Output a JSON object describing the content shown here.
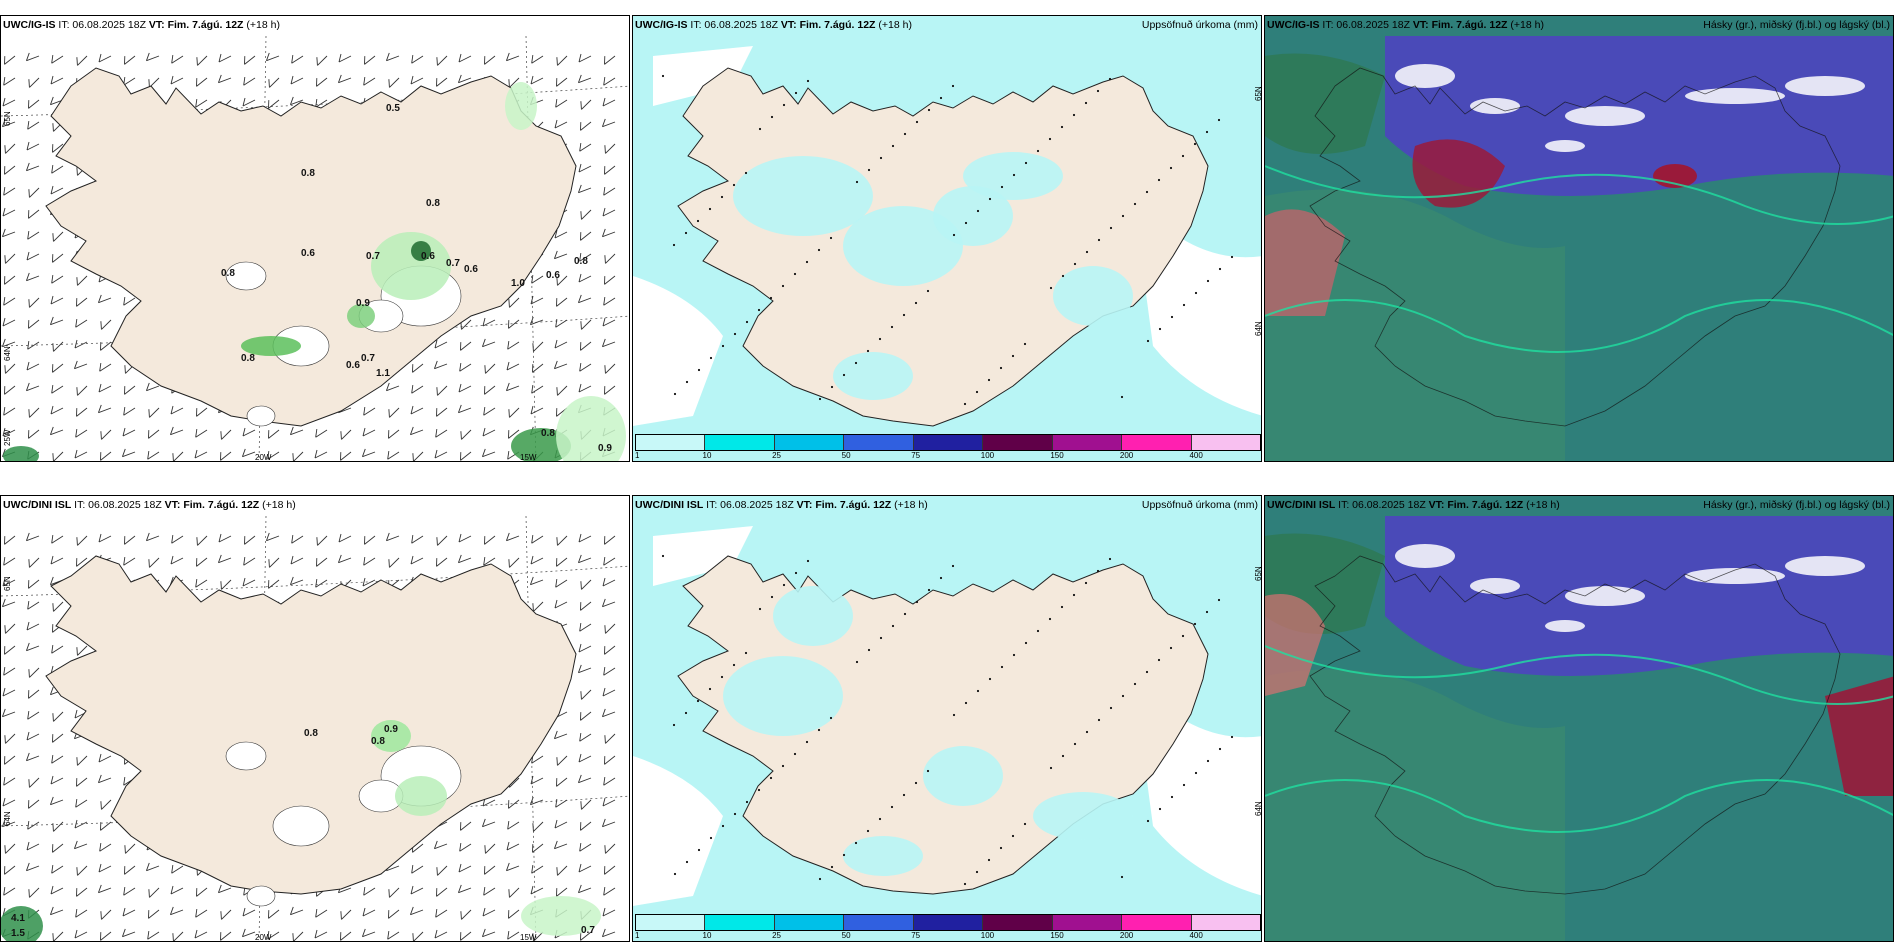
{
  "colors": {
    "land": "#f4e9dc",
    "precip_light": "#b8f5f5",
    "cloud_blue": "#4a4ab8",
    "cloud_teal": "#2f7f7a",
    "cloud_red": "#9a1a3a"
  },
  "panels": [
    {
      "id": "top-left",
      "model": "UWC/IG-IS",
      "it_label": "IT: 06.08.2025 18Z",
      "vt_label": "VT: Fim. 7.ágú. 12Z",
      "lead": "(+18 h)",
      "right_title": "",
      "type": "wind",
      "lat_labels": [
        "65N",
        "64N",
        "25W"
      ],
      "lon_labels": [
        "20W",
        "15W"
      ],
      "values": [
        "0.5",
        "0.8",
        "0.8",
        "0.8",
        "0.6",
        "0.7",
        "0.6",
        "0.9",
        "0.7",
        "0.6",
        "0.6",
        "1.0",
        "0.8",
        "0.8",
        "0.7",
        "0.6",
        "1.1",
        "0.8",
        "0.9"
      ]
    },
    {
      "id": "top-middle",
      "model": "UWC/IG-IS",
      "it_label": "IT: 06.08.2025 18Z",
      "vt_label": "VT: Fim. 7.ágú. 12Z",
      "lead": "(+18 h)",
      "right_title": "Uppsöfnuð úrkoma (mm)",
      "type": "precip",
      "lat_labels": [
        "65N",
        "64N"
      ],
      "colorbar": [
        "1",
        "10",
        "25",
        "50",
        "75",
        "100",
        "150",
        "200",
        "400"
      ]
    },
    {
      "id": "top-right",
      "model": "UWC/IG-IS",
      "it_label": "IT: 06.08.2025 18Z",
      "vt_label": "VT: Fim. 7.ágú. 12Z",
      "lead": "(+18 h)",
      "right_title": "Hásky (gr.), miðský (fj.bl.) og lágský (bl.)",
      "type": "cloud"
    },
    {
      "id": "bottom-left",
      "model": "UWC/DINI ISL",
      "it_label": "IT: 06.08.2025 18Z",
      "vt_label": "VT: Fim. 7.ágú. 12Z",
      "lead": "(+18 h)",
      "right_title": "",
      "type": "wind",
      "lat_labels": [
        "65N",
        "64N"
      ],
      "lon_labels": [
        "20W",
        "15W"
      ],
      "values": [
        "0.8",
        "0.9",
        "0.8",
        "4.1",
        "1.5",
        "0.7"
      ]
    },
    {
      "id": "bottom-middle",
      "model": "UWC/DINI ISL",
      "it_label": "IT: 06.08.2025 18Z",
      "vt_label": "VT: Fim. 7.ágú. 12Z",
      "lead": "(+18 h)",
      "right_title": "Uppsöfnuð úrkoma (mm)",
      "type": "precip",
      "lat_labels": [
        "65N",
        "64N"
      ],
      "colorbar": [
        "1",
        "10",
        "25",
        "50",
        "75",
        "100",
        "150",
        "200",
        "400"
      ]
    },
    {
      "id": "bottom-right",
      "model": "UWC/DINI ISL",
      "it_label": "IT: 06.08.2025 18Z",
      "vt_label": "VT: Fim. 7.ágú. 12Z",
      "lead": "(+18 h)",
      "right_title": "Hásky (gr.), miðský (fj.bl.) og lágský (bl.)",
      "type": "cloud"
    }
  ],
  "colorbar_colors": [
    "#c8f8f8",
    "#00e8e8",
    "#00c0e8",
    "#3060e0",
    "#2020a0",
    "#600048",
    "#a01090",
    "#ff20b0",
    "#f8c0f0"
  ]
}
